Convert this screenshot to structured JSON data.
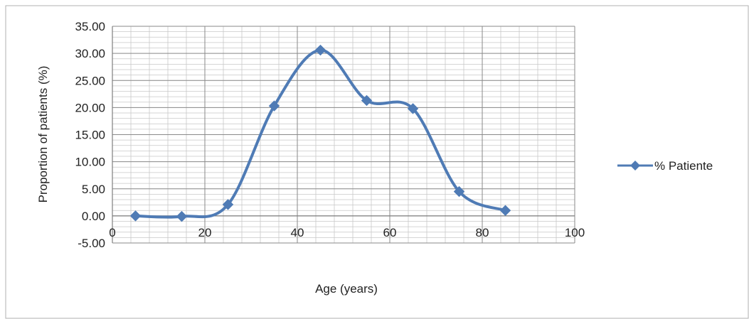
{
  "chart_data": {
    "type": "scatter",
    "title": "",
    "xlabel": "Age (years)",
    "ylabel": "Proportion of patients (%)",
    "xlim": [
      0,
      100
    ],
    "ylim": [
      -5,
      35
    ],
    "x_ticks": [
      "0",
      "20",
      "40",
      "60",
      "80",
      "100"
    ],
    "y_ticks": [
      "35.00",
      "30.00",
      "25.00",
      "20.00",
      "15.00",
      "10.00",
      "5.00",
      "0.00",
      "-5.00"
    ],
    "grid": true,
    "legend_position": "right",
    "series": [
      {
        "name": "% Patiente",
        "color": "#4f7bb5",
        "marker": "diamond",
        "smooth": true,
        "x": [
          5,
          15,
          25,
          35,
          45,
          55,
          65,
          75,
          85
        ],
        "y": [
          0.0,
          -0.1,
          2.1,
          20.3,
          30.6,
          21.3,
          19.8,
          4.5,
          1.0
        ]
      }
    ]
  }
}
